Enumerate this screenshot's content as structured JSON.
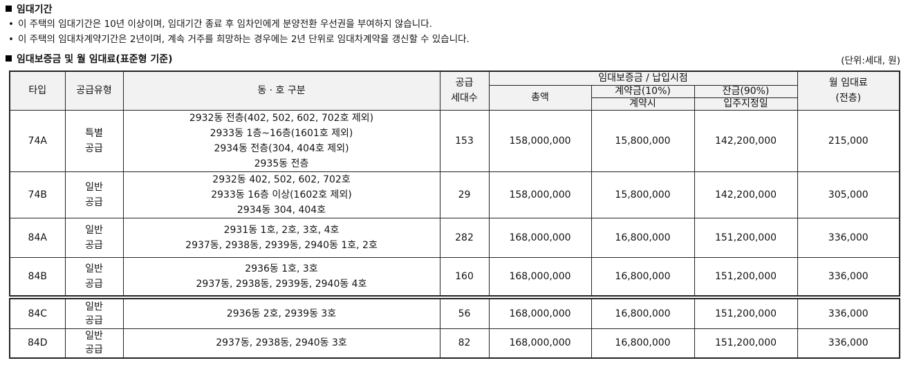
{
  "section1": {
    "title": "임대기간",
    "bullets": [
      "이 주택의 임대기간은 10년 이상이며, 임대기간 종료 후 임차인에게 분양전환 우선권을 부여하지 않습니다.",
      "이 주택의 임대차계약기간은 2년이며, 계속 거주를 희망하는 경우에는 2년 단위로 임대차계약을 갱신할 수 있습니다."
    ],
    "bullet_mark": "•"
  },
  "section2": {
    "title": "임대보증금 및 월 임대료(표준형 기준)",
    "unit": "(단위:세대, 원)"
  },
  "table": {
    "headers": {
      "type": "타입",
      "supply_type": "공급유형",
      "dong_ho": "동 · 호 구분",
      "households_1": "공급",
      "households_2": "세대수",
      "deposit_group": "임대보증금 / 납입시점",
      "total": "총액",
      "contract_1": "계약금(10%)",
      "contract_2": "계약시",
      "balance_1": "잔금(90%)",
      "balance_2": "입주지정일",
      "rent_1": "월 임대료",
      "rent_2": "(전층)"
    },
    "rows": [
      {
        "type": "74A",
        "supply": [
          "특별",
          "공급"
        ],
        "dong_ho": [
          "2932동 전층(402, 502, 602, 702호 제외)",
          "2933동 1층~16층(1601호 제외)",
          "2934동 전층(304, 404호 제외)",
          "2935동 전층"
        ],
        "households": "153",
        "total": "158,000,000",
        "contract": "15,800,000",
        "balance": "142,200,000",
        "rent": "215,000"
      },
      {
        "type": "74B",
        "supply": [
          "일반",
          "공급"
        ],
        "dong_ho": [
          "2932동 402, 502, 602, 702호",
          "2933동 16층 이상(1602호 제외)",
          "2934동 304, 404호"
        ],
        "households": "29",
        "total": "158,000,000",
        "contract": "15,800,000",
        "balance": "142,200,000",
        "rent": "305,000"
      },
      {
        "type": "84A",
        "supply": [
          "일반",
          "공급"
        ],
        "dong_ho": [
          "2931동 1호, 2호, 3호, 4호",
          "2937동, 2938동, 2939동, 2940동 1호, 2호"
        ],
        "households": "282",
        "total": "168,000,000",
        "contract": "16,800,000",
        "balance": "151,200,000",
        "rent": "336,000"
      },
      {
        "type": "84B",
        "supply": [
          "일반",
          "공급"
        ],
        "dong_ho": [
          "2936동 1호, 3호",
          "2937동, 2938동, 2939동, 2940동 4호"
        ],
        "households": "160",
        "total": "168,000,000",
        "contract": "16,800,000",
        "balance": "151,200,000",
        "rent": "336,000"
      },
      {
        "type": "84C",
        "supply": [
          "일반",
          "공급"
        ],
        "dong_ho": [
          "2936동 2호, 2939동 3호"
        ],
        "households": "56",
        "total": "168,000,000",
        "contract": "16,800,000",
        "balance": "151,200,000",
        "rent": "336,000"
      },
      {
        "type": "84D",
        "supply": [
          "일반",
          "공급"
        ],
        "dong_ho": [
          "2937동, 2938동, 2940동 3호"
        ],
        "households": "82",
        "total": "168,000,000",
        "contract": "16,800,000",
        "balance": "151,200,000",
        "rent": "336,000"
      }
    ]
  }
}
